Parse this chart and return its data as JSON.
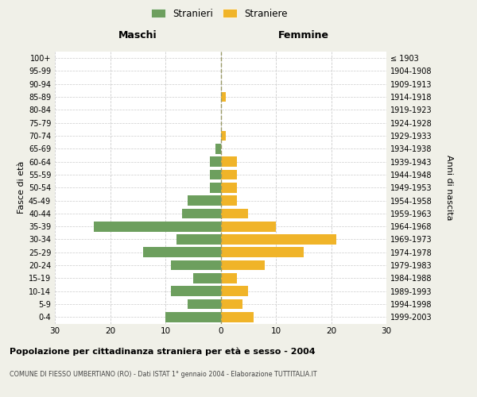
{
  "age_groups": [
    "0-4",
    "5-9",
    "10-14",
    "15-19",
    "20-24",
    "25-29",
    "30-34",
    "35-39",
    "40-44",
    "45-49",
    "50-54",
    "55-59",
    "60-64",
    "65-69",
    "70-74",
    "75-79",
    "80-84",
    "85-89",
    "90-94",
    "95-99",
    "100+"
  ],
  "birth_years": [
    "1999-2003",
    "1994-1998",
    "1989-1993",
    "1984-1988",
    "1979-1983",
    "1974-1978",
    "1969-1973",
    "1964-1968",
    "1959-1963",
    "1954-1958",
    "1949-1953",
    "1944-1948",
    "1939-1943",
    "1934-1938",
    "1929-1933",
    "1924-1928",
    "1919-1923",
    "1914-1918",
    "1909-1913",
    "1904-1908",
    "≤ 1903"
  ],
  "males": [
    10,
    6,
    9,
    5,
    9,
    14,
    8,
    23,
    7,
    6,
    2,
    2,
    2,
    1,
    0,
    0,
    0,
    0,
    0,
    0,
    0
  ],
  "females": [
    6,
    4,
    5,
    3,
    8,
    15,
    21,
    10,
    5,
    3,
    3,
    3,
    3,
    0,
    1,
    0,
    0,
    1,
    0,
    0,
    0
  ],
  "male_color": "#6d9f5e",
  "female_color": "#f0b429",
  "grid_color": "#cccccc",
  "center_line_color": "#999966",
  "title": "Popolazione per cittadinanza straniera per età e sesso - 2004",
  "subtitle": "COMUNE DI FIESSO UMBERTIANO (RO) - Dati ISTAT 1° gennaio 2004 - Elaborazione TUTTITALIA.IT",
  "legend_male": "Stranieri",
  "legend_female": "Straniere",
  "xlabel_left": "Maschi",
  "xlabel_right": "Femmine",
  "ylabel_left": "Fasce di età",
  "ylabel_right": "Anni di nascita",
  "xlim": 30,
  "background_color": "#f0f0e8",
  "plot_background": "#ffffff"
}
